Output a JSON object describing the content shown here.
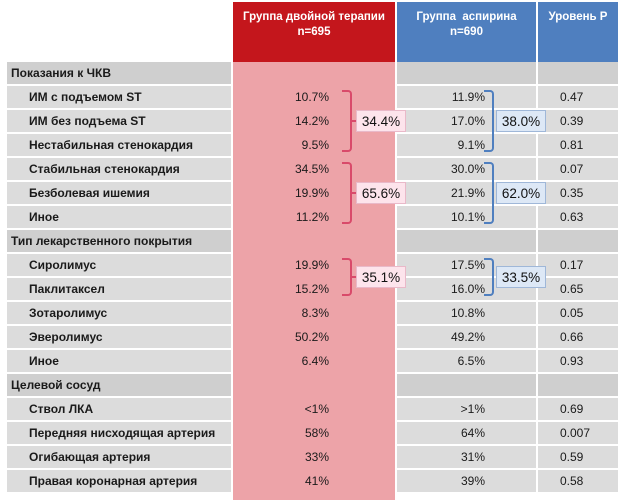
{
  "header": {
    "dual_title": "Группа двойной терапии",
    "dual_n": "n=695",
    "asp_title": "Группа  аспирина",
    "asp_n": "n=690",
    "p_title": "Уровень Р"
  },
  "rows": [
    {
      "label": "Показания к ЧКВ",
      "section": true,
      "dual": "",
      "asp": "",
      "p": ""
    },
    {
      "label": "ИМ с подъемом ST",
      "section": false,
      "dual": "10.7%",
      "asp": "11.9%",
      "p": "0.47"
    },
    {
      "label": "ИМ без подъема ST",
      "section": false,
      "dual": "14.2%",
      "asp": "17.0%",
      "p": "0.39"
    },
    {
      "label": "Нестабильная стенокардия",
      "section": false,
      "dual": "9.5%",
      "asp": "9.1%",
      "p": "0.81"
    },
    {
      "label": "Стабильная стенокардия",
      "section": false,
      "dual": "34.5%",
      "asp": "30.0%",
      "p": "0.07"
    },
    {
      "label": "Безболевая ишемия",
      "section": false,
      "dual": "19.9%",
      "asp": "21.9%",
      "p": "0.35"
    },
    {
      "label": "Иное",
      "section": false,
      "dual": "11.2%",
      "asp": "10.1%",
      "p": "0.63"
    },
    {
      "label": "Тип лекарственного покрытия",
      "section": true,
      "dual": "",
      "asp": "",
      "p": ""
    },
    {
      "label": "Сиролимус",
      "section": false,
      "dual": "19.9%",
      "asp": "17.5%",
      "p": "0.17"
    },
    {
      "label": "Паклитаксел",
      "section": false,
      "dual": "15.2%",
      "asp": "16.0%",
      "p": "0.65"
    },
    {
      "label": "Зотаролимус",
      "section": false,
      "dual": "8.3%",
      "asp": "10.8%",
      "p": "0.05"
    },
    {
      "label": "Эверолимус",
      "section": false,
      "dual": "50.2%",
      "asp": "49.2%",
      "p": "0.66"
    },
    {
      "label": "Иное",
      "section": false,
      "dual": "6.4%",
      "asp": "6.5%",
      "p": "0.93"
    },
    {
      "label": "Целевой сосуд",
      "section": true,
      "dual": "",
      "asp": "",
      "p": ""
    },
    {
      "label": "Ствол ЛКА",
      "section": false,
      "dual": "<1%",
      "asp": ">1%",
      "p": "0.69"
    },
    {
      "label": "Передняя нисходящая артерия",
      "section": false,
      "dual": "58%",
      "asp": "64%",
      "p": "0.007"
    },
    {
      "label": "Огибающая артерия",
      "section": false,
      "dual": "33%",
      "asp": "31%",
      "p": "0.59"
    },
    {
      "label": "Правая коронарная  артерия",
      "section": false,
      "dual": "41%",
      "asp": "39%",
      "p": "0.58"
    }
  ],
  "groups": [
    {
      "dual_total": "34.4%",
      "asp_total": "38.0%"
    },
    {
      "dual_total": "65.6%",
      "asp_total": "62.0%"
    },
    {
      "dual_total": "35.1%",
      "asp_total": "33.5%"
    }
  ],
  "colors": {
    "header_dual": "#c4161c",
    "header_blue": "#4f7fbf",
    "dual_column": "#eda3a8",
    "row_band": "#dcdcdc",
    "section_band": "#cfcfcf",
    "bracket_pink": "#d94a6a",
    "bracket_blue": "#4f7fbf"
  }
}
